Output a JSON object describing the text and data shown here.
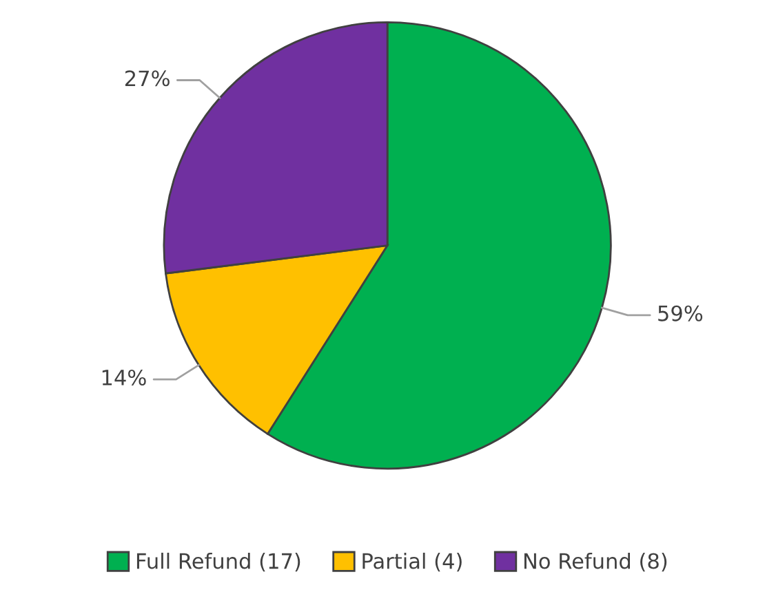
{
  "chart_data": {
    "type": "pie",
    "categories": [
      "Full Refund (17)",
      "Partial (4)",
      "No Refund (8)"
    ],
    "values": [
      59,
      14,
      27
    ],
    "colors": [
      "#00b050",
      "#ffc000",
      "#7030a0"
    ],
    "value_labels": [
      "59%",
      "14%",
      "27%"
    ],
    "legend": "bottom"
  }
}
